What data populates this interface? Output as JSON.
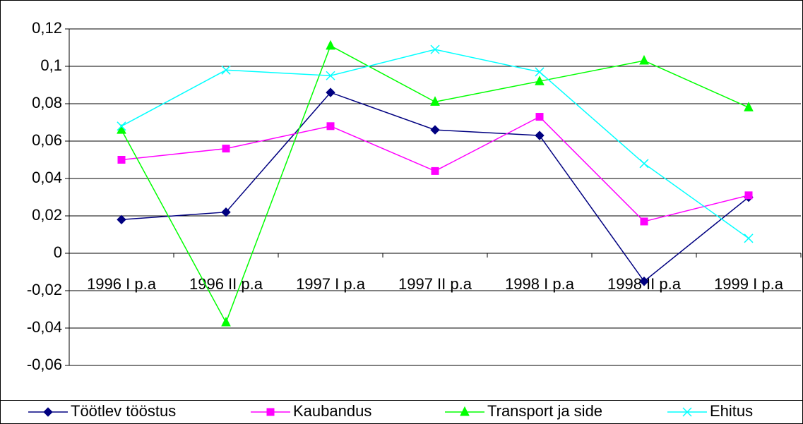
{
  "chart_data": {
    "type": "line",
    "categories": [
      "1996 I p.a",
      "1996 II p.a",
      "1997 I p.a",
      "1997 II p.a",
      "1998 I p.a",
      "1998 II p.a",
      "1999 I p.a"
    ],
    "series": [
      {
        "name": "Töötlev tööstus",
        "color": "#000080",
        "marker": "diamond",
        "values": [
          0.018,
          0.022,
          0.086,
          0.066,
          0.063,
          -0.015,
          0.03
        ]
      },
      {
        "name": "Kaubandus",
        "color": "#ff00ff",
        "marker": "square",
        "values": [
          0.05,
          0.056,
          0.068,
          0.044,
          0.073,
          0.017,
          0.031
        ]
      },
      {
        "name": "Transport ja side",
        "color": "#00ff00",
        "marker": "triangle",
        "values": [
          0.066,
          -0.037,
          0.111,
          0.081,
          0.092,
          0.103,
          0.078
        ]
      },
      {
        "name": "Ehitus",
        "color": "#00ffff",
        "marker": "x",
        "values": [
          0.068,
          0.098,
          0.095,
          0.109,
          0.097,
          0.048,
          0.008
        ]
      }
    ],
    "ylim": [
      -0.06,
      0.12
    ],
    "yticks": [
      {
        "value": 0.12,
        "label": "0,12"
      },
      {
        "value": 0.1,
        "label": "0,1"
      },
      {
        "value": 0.08,
        "label": "0,08"
      },
      {
        "value": 0.06,
        "label": "0,06"
      },
      {
        "value": 0.04,
        "label": "0,04"
      },
      {
        "value": 0.02,
        "label": "0,02"
      },
      0,
      {
        "value": -0.02,
        "label": "-0,02"
      },
      {
        "value": -0.04,
        "label": "-0,04"
      },
      {
        "value": -0.06,
        "label": "-0,06"
      }
    ],
    "grid": true,
    "legend": "bottom"
  }
}
